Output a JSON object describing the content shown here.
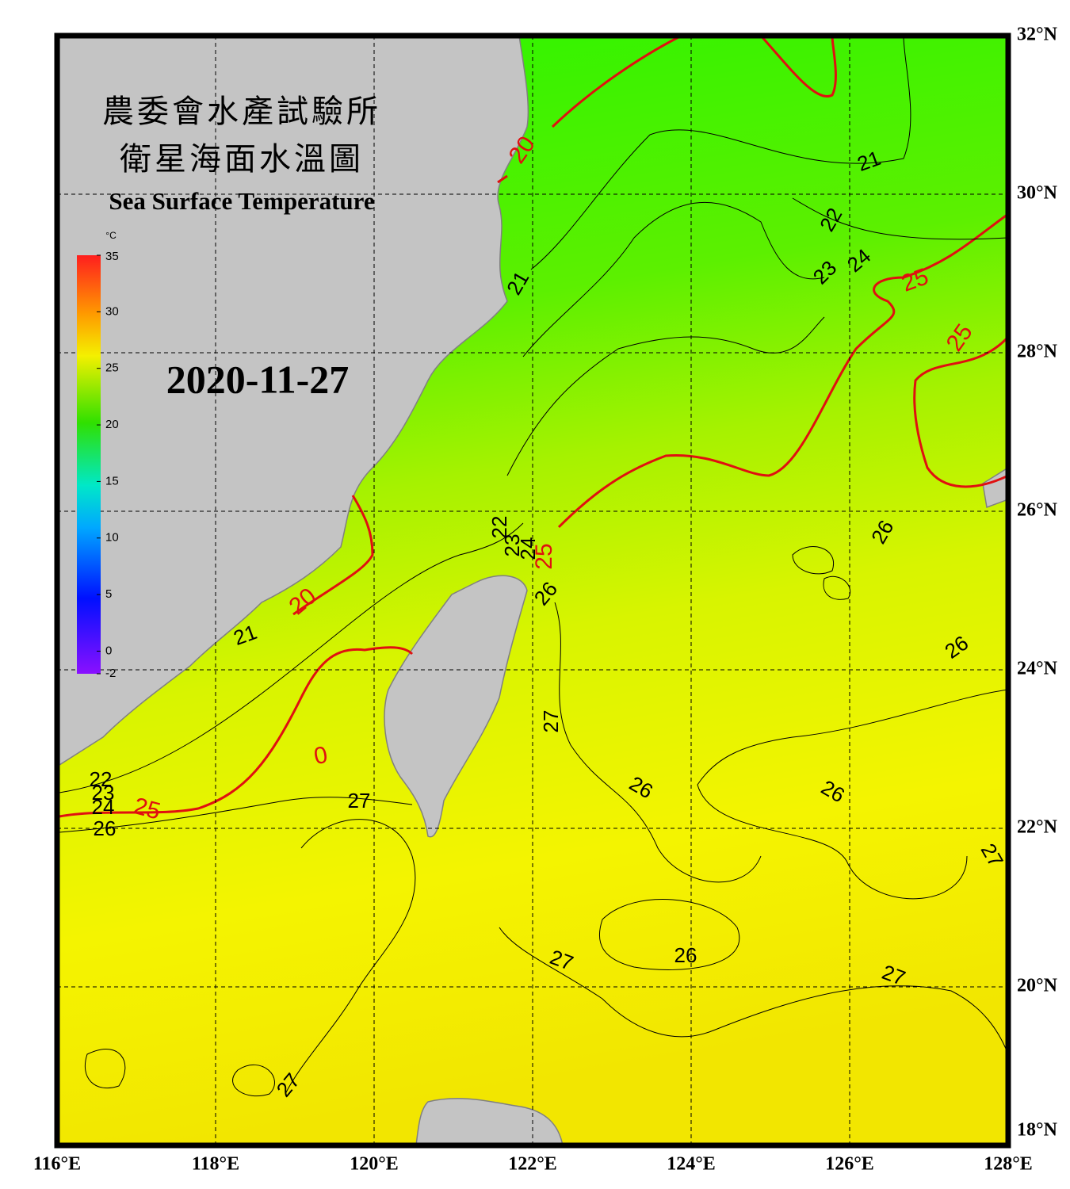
{
  "header": {
    "title_lines": [
      "農委會水產試驗所",
      "衛星海面水溫圖"
    ],
    "subtitle": "Sea Surface Temperature",
    "date": "2020-11-27"
  },
  "colorbar": {
    "unit": "°C",
    "ticks": [
      35,
      30,
      25,
      20,
      15,
      10,
      5,
      0,
      -2
    ]
  },
  "lon_labels": [
    "116°E",
    "118°E",
    "120°E",
    "122°E",
    "124°E",
    "126°E",
    "128°E"
  ],
  "lat_labels": [
    "32°N",
    "30°N",
    "28°N",
    "26°N",
    "24°N",
    "22°N",
    "20°N",
    "18°N"
  ],
  "contour_labels": [
    {
      "text": "20",
      "color": "#e01010"
    },
    {
      "text": "21",
      "color": "#000000"
    },
    {
      "text": "22",
      "color": "#000000"
    },
    {
      "text": "23",
      "color": "#000000"
    },
    {
      "text": "24",
      "color": "#000000"
    },
    {
      "text": "25",
      "color": "#e01010"
    },
    {
      "text": "25",
      "color": "#e01010"
    },
    {
      "text": "21",
      "color": "#000000"
    },
    {
      "text": "22",
      "color": "#000000"
    },
    {
      "text": "23",
      "color": "#000000"
    },
    {
      "text": "24",
      "color": "#000000"
    },
    {
      "text": "25",
      "color": "#e01010"
    },
    {
      "text": "26",
      "color": "#000000"
    },
    {
      "text": "26",
      "color": "#000000"
    },
    {
      "text": "26",
      "color": "#000000"
    },
    {
      "text": "20",
      "color": "#e01010"
    },
    {
      "text": "21",
      "color": "#000000"
    },
    {
      "text": "27",
      "color": "#000000"
    },
    {
      "text": "26",
      "color": "#000000"
    },
    {
      "text": "26",
      "color": "#000000"
    },
    {
      "text": "22",
      "color": "#000000"
    },
    {
      "text": "23",
      "color": "#000000"
    },
    {
      "text": "24",
      "color": "#000000"
    },
    {
      "text": "25",
      "color": "#e01010"
    },
    {
      "text": "26",
      "color": "#000000"
    },
    {
      "text": "27",
      "color": "#000000"
    },
    {
      "text": "27",
      "color": "#000000"
    },
    {
      "text": "26",
      "color": "#000000"
    },
    {
      "text": "27",
      "color": "#000000"
    },
    {
      "text": "27",
      "color": "#000000"
    },
    {
      "text": "27",
      "color": "#000000"
    },
    {
      "text": "0",
      "color": "#e01010"
    }
  ]
}
